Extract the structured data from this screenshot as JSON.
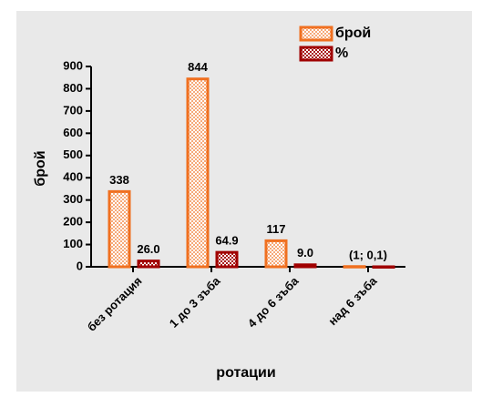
{
  "chart_data": {
    "type": "bar",
    "categories": [
      "без ротация",
      "1 до 3 зъба",
      "4 до 6 зъба",
      "над 6 зъба"
    ],
    "series": [
      {
        "name": "брой",
        "color": "#f07020",
        "values": [
          338,
          844,
          117,
          1
        ],
        "value_labels": [
          "338",
          "844",
          "117",
          null
        ]
      },
      {
        "name": "%",
        "color": "#a00000",
        "values": [
          26,
          64.9,
          9,
          0.1
        ],
        "value_labels": [
          "26.0",
          "64.9",
          "9.0",
          null
        ]
      }
    ],
    "annotation": "(1; 0,1)",
    "y_label": "брой",
    "x_label": "ротации",
    "ylim": [
      0,
      900
    ],
    "yticks": [
      0,
      100,
      200,
      300,
      400,
      500,
      600,
      700,
      800,
      900
    ],
    "legend": "top-right"
  }
}
